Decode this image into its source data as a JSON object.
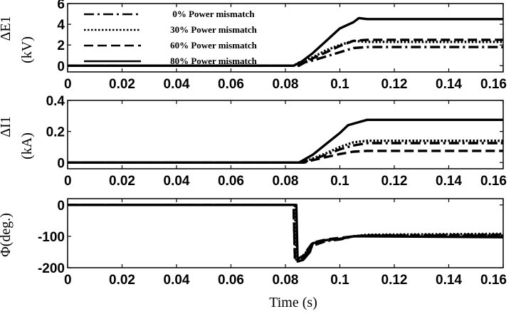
{
  "chart_data": [
    {
      "type": "line",
      "ylabel": "ΔE1",
      "yunit": "(kV)",
      "xlim": [
        0,
        0.16
      ],
      "ylim": [
        -0.6,
        6
      ],
      "xticks": [
        "0",
        "0.02",
        "0.04",
        "0.06",
        "0.08",
        "0.1",
        "0.12",
        "0.14",
        "0.16"
      ],
      "yticks": [
        "0",
        "2",
        "4",
        "6"
      ],
      "legend": {
        "placement": "top-left",
        "entries": [
          "0% Power mismatch",
          "30% Power mismatch",
          "60% Power mismatch",
          "80% Power mismatch"
        ]
      },
      "series": [
        {
          "name": "0% Power mismatch",
          "style": "dashdot",
          "points": [
            [
              0,
              0
            ],
            [
              0.083,
              0
            ],
            [
              0.085,
              0.2
            ],
            [
              0.09,
              0.5
            ],
            [
              0.095,
              0.9
            ],
            [
              0.1,
              1.3
            ],
            [
              0.105,
              1.7
            ],
            [
              0.11,
              1.8
            ],
            [
              0.16,
              1.8
            ]
          ]
        },
        {
          "name": "30% Power mismatch",
          "style": "dotted",
          "points": [
            [
              0,
              0
            ],
            [
              0.083,
              0
            ],
            [
              0.085,
              0.3
            ],
            [
              0.09,
              0.8
            ],
            [
              0.095,
              1.5
            ],
            [
              0.1,
              2.0
            ],
            [
              0.105,
              2.4
            ],
            [
              0.11,
              2.3
            ],
            [
              0.12,
              2.3
            ],
            [
              0.16,
              2.3
            ]
          ]
        },
        {
          "name": "60% Power mismatch",
          "style": "dashed",
          "points": [
            [
              0,
              0
            ],
            [
              0.085,
              0
            ],
            [
              0.087,
              0.3
            ],
            [
              0.09,
              0.7
            ],
            [
              0.095,
              1.3
            ],
            [
              0.1,
              1.9
            ],
            [
              0.105,
              2.4
            ],
            [
              0.11,
              2.5
            ],
            [
              0.16,
              2.5
            ]
          ]
        },
        {
          "name": "80% Power mismatch",
          "style": "solid",
          "points": [
            [
              0,
              0
            ],
            [
              0.083,
              0
            ],
            [
              0.086,
              0.4
            ],
            [
              0.09,
              1.2
            ],
            [
              0.095,
              2.4
            ],
            [
              0.1,
              3.6
            ],
            [
              0.105,
              4.2
            ],
            [
              0.107,
              4.6
            ],
            [
              0.11,
              4.5
            ],
            [
              0.16,
              4.5
            ]
          ]
        }
      ]
    },
    {
      "type": "line",
      "ylabel": "ΔI1",
      "yunit": "(kA)",
      "xlim": [
        0,
        0.16
      ],
      "ylim": [
        -0.04,
        0.4
      ],
      "xticks": [
        "0",
        "0.02",
        "0.04",
        "0.06",
        "0.08",
        "0.1",
        "0.12",
        "0.14",
        "0.16"
      ],
      "yticks": [
        "0",
        "0.2",
        "0.4"
      ],
      "series": [
        {
          "name": "0% Power mismatch",
          "style": "dashdot",
          "points": [
            [
              0,
              0
            ],
            [
              0.086,
              0
            ],
            [
              0.09,
              0.02
            ],
            [
              0.095,
              0.05
            ],
            [
              0.1,
              0.085
            ],
            [
              0.105,
              0.11
            ],
            [
              0.11,
              0.125
            ],
            [
              0.16,
              0.125
            ]
          ]
        },
        {
          "name": "30% Power mismatch",
          "style": "dotted",
          "points": [
            [
              0,
              0
            ],
            [
              0.086,
              0
            ],
            [
              0.09,
              0.025
            ],
            [
              0.095,
              0.06
            ],
            [
              0.1,
              0.1
            ],
            [
              0.105,
              0.13
            ],
            [
              0.11,
              0.14
            ],
            [
              0.16,
              0.14
            ]
          ]
        },
        {
          "name": "60% Power mismatch",
          "style": "dashed",
          "points": [
            [
              0,
              0
            ],
            [
              0.087,
              0
            ],
            [
              0.09,
              0.015
            ],
            [
              0.095,
              0.035
            ],
            [
              0.1,
              0.055
            ],
            [
              0.105,
              0.07
            ],
            [
              0.11,
              0.075
            ],
            [
              0.16,
              0.075
            ]
          ]
        },
        {
          "name": "80% Power mismatch",
          "style": "solid",
          "points": [
            [
              0,
              0
            ],
            [
              0.085,
              0
            ],
            [
              0.09,
              0.05
            ],
            [
              0.095,
              0.12
            ],
            [
              0.1,
              0.19
            ],
            [
              0.103,
              0.24
            ],
            [
              0.107,
              0.26
            ],
            [
              0.11,
              0.275
            ],
            [
              0.16,
              0.275
            ]
          ]
        }
      ]
    },
    {
      "type": "line",
      "ylabel": "Φ(deg.)",
      "xlabel": "Time (s)",
      "xlim": [
        0,
        0.16
      ],
      "ylim": [
        -200,
        20
      ],
      "xticks": [
        "0",
        "0.02",
        "0.04",
        "0.06",
        "0.08",
        "0.1",
        "0.12",
        "0.14",
        "0.16"
      ],
      "yticks": [
        "0",
        "-100",
        "-200"
      ],
      "series": [
        {
          "name": "0% Power mismatch",
          "style": "dashdot",
          "points": [
            [
              0,
              0
            ],
            [
              0.083,
              0
            ],
            [
              0.0835,
              -175
            ],
            [
              0.086,
              -170
            ],
            [
              0.09,
              -130
            ],
            [
              0.095,
              -115
            ],
            [
              0.1,
              -110
            ],
            [
              0.105,
              -100
            ],
            [
              0.11,
              -98
            ],
            [
              0.16,
              -98
            ]
          ]
        },
        {
          "name": "30% Power mismatch",
          "style": "dotted",
          "points": [
            [
              0,
              0
            ],
            [
              0.0835,
              0
            ],
            [
              0.084,
              -178
            ],
            [
              0.086,
              -168
            ],
            [
              0.09,
              -125
            ],
            [
              0.095,
              -112
            ],
            [
              0.1,
              -108
            ],
            [
              0.105,
              -100
            ],
            [
              0.11,
              -95
            ],
            [
              0.16,
              -92
            ]
          ]
        },
        {
          "name": "60% Power mismatch",
          "style": "dashed",
          "points": [
            [
              0,
              0
            ],
            [
              0.083,
              0
            ],
            [
              0.0835,
              -178
            ],
            [
              0.0865,
              -162
            ],
            [
              0.09,
              -120
            ],
            [
              0.095,
              -110
            ],
            [
              0.1,
              -105
            ],
            [
              0.105,
              -100
            ],
            [
              0.11,
              -97
            ],
            [
              0.16,
              -95
            ]
          ]
        },
        {
          "name": "80% Power mismatch",
          "style": "solid",
          "points": [
            [
              0,
              0
            ],
            [
              0.084,
              0
            ],
            [
              0.0845,
              -180
            ],
            [
              0.0865,
              -175
            ],
            [
              0.089,
              -150
            ],
            [
              0.09,
              -122
            ],
            [
              0.095,
              -112
            ],
            [
              0.1,
              -108
            ],
            [
              0.105,
              -100
            ],
            [
              0.11,
              -100
            ],
            [
              0.16,
              -103
            ]
          ]
        }
      ]
    }
  ]
}
